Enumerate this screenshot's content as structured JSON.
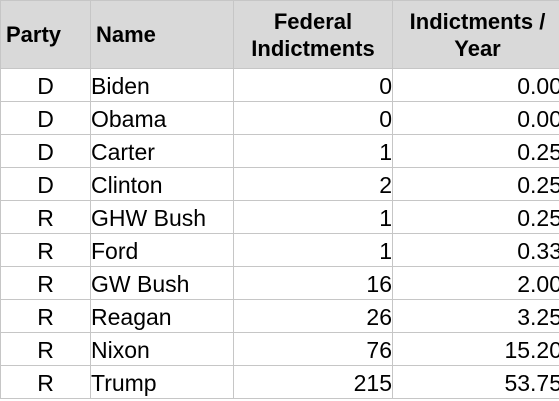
{
  "headers": {
    "party": "Party",
    "name": "Name",
    "federal_line1": "Federal",
    "federal_line2": "Indictments",
    "per_year_line1": "Indictments /",
    "per_year_line2": "Year"
  },
  "rows": [
    {
      "party": "D",
      "name": "Biden",
      "federal": "0",
      "per_year": "0.00"
    },
    {
      "party": "D",
      "name": "Obama",
      "federal": "0",
      "per_year": "0.00"
    },
    {
      "party": "D",
      "name": "Carter",
      "federal": "1",
      "per_year": "0.25"
    },
    {
      "party": "D",
      "name": "Clinton",
      "federal": "2",
      "per_year": "0.25"
    },
    {
      "party": "R",
      "name": "GHW Bush",
      "federal": "1",
      "per_year": "0.25"
    },
    {
      "party": "R",
      "name": "Ford",
      "federal": "1",
      "per_year": "0.33"
    },
    {
      "party": "R",
      "name": "GW Bush",
      "federal": "16",
      "per_year": "2.00"
    },
    {
      "party": "R",
      "name": "Reagan",
      "federal": "26",
      "per_year": "3.25"
    },
    {
      "party": "R",
      "name": "Nixon",
      "federal": "76",
      "per_year": "15.20"
    },
    {
      "party": "R",
      "name": "Trump",
      "federal": "215",
      "per_year": "53.75"
    }
  ],
  "colors": {
    "header_fill": "#d9d9d9",
    "gridline": "#c6c6c6"
  }
}
